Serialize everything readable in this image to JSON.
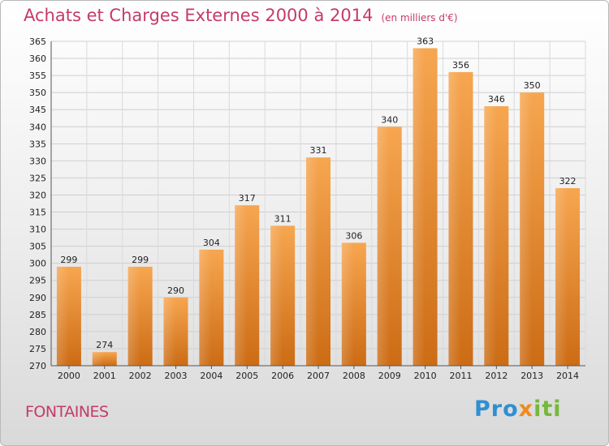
{
  "title": "Achats et Charges Externes 2000 à 2014",
  "unit": "(en milliers d'€)",
  "city": "FONTAINES",
  "logo": {
    "part1": "Pro",
    "part2": "x",
    "part3": "iti"
  },
  "colors": {
    "bar_light": "#f6a24c",
    "bar_dark": "#cf6e16",
    "title": "#c63a6b"
  },
  "chart_data": {
    "type": "bar",
    "categories": [
      "2000",
      "2001",
      "2002",
      "2003",
      "2004",
      "2005",
      "2006",
      "2007",
      "2008",
      "2009",
      "2010",
      "2011",
      "2012",
      "2013",
      "2014"
    ],
    "values": [
      299,
      274,
      299,
      290,
      304,
      317,
      311,
      331,
      306,
      340,
      363,
      356,
      346,
      350,
      322
    ],
    "ylim": [
      270,
      365
    ],
    "yticks": [
      270,
      275,
      280,
      285,
      290,
      295,
      300,
      305,
      310,
      315,
      320,
      325,
      330,
      335,
      340,
      345,
      350,
      355,
      360,
      365
    ],
    "grid": true
  }
}
